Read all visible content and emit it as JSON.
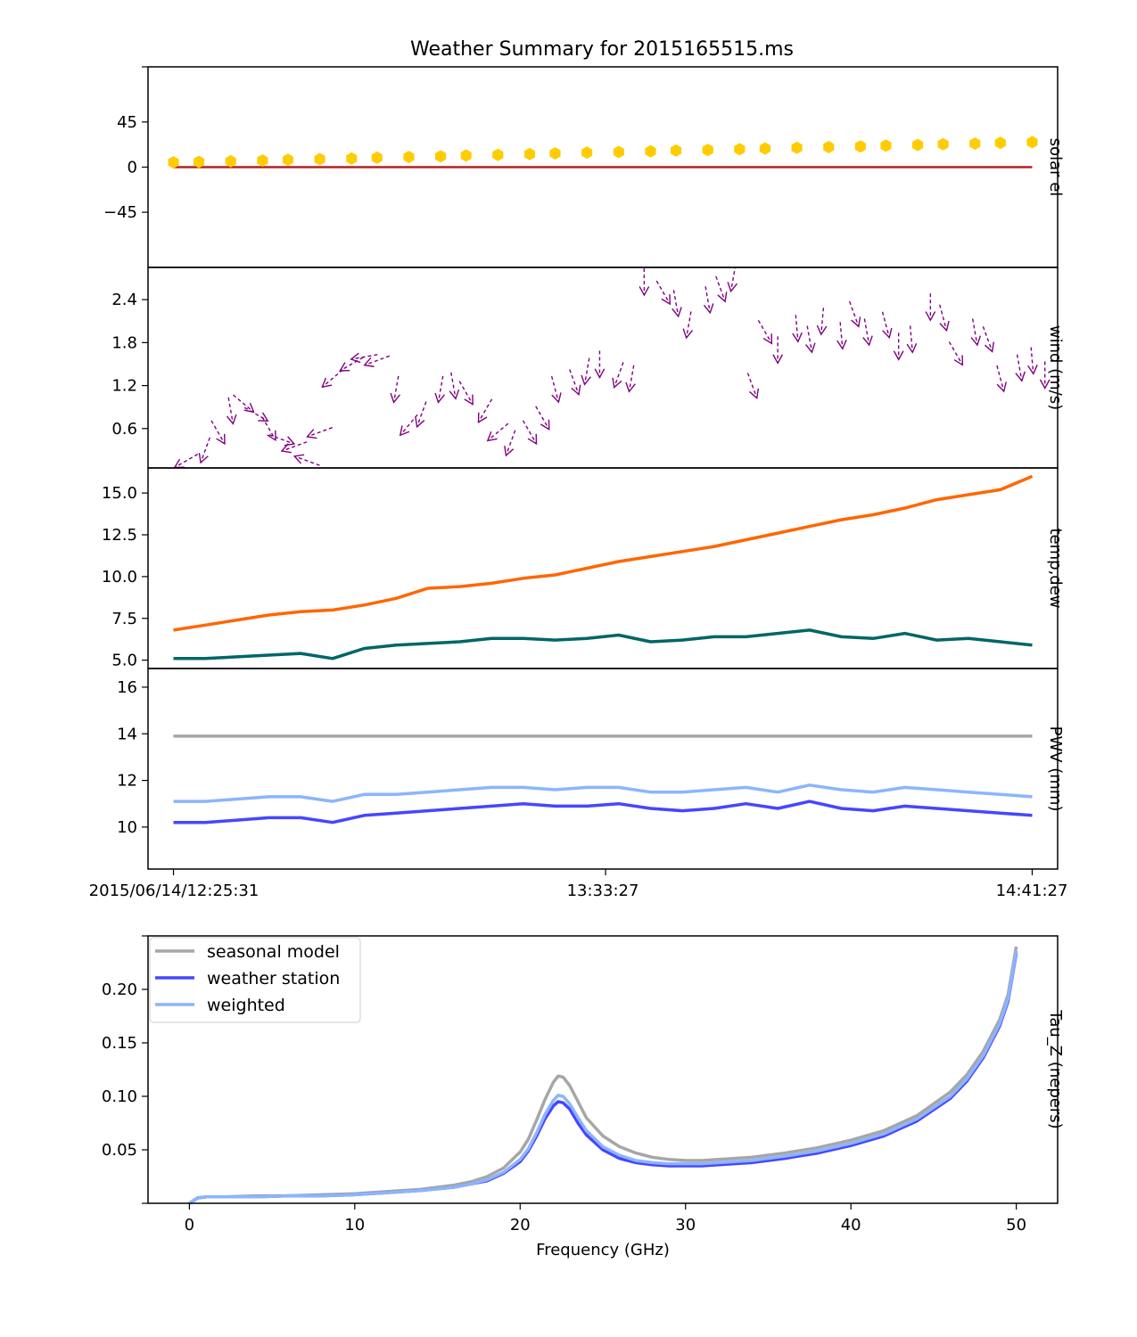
{
  "title": "Weather Summary for 2015165515.ms",
  "colors": {
    "solar_el_points": "#ffcc00",
    "horizon_line": "#b22222",
    "wind_arrows": "#800080",
    "temperature": "#ff6600",
    "dewpoint": "#006666",
    "pwv_seasonal": "#a6a6a6",
    "pwv_weather_station": "#4646ff",
    "pwv_weighted": "#8cb4ff"
  },
  "time_axis": {
    "tick_labels": [
      "2015/06/14/12:25:31",
      "13:33:27",
      "14:41:27"
    ]
  },
  "chart_data": [
    {
      "type": "scatter",
      "ylabel": "solar el",
      "ylim": [
        -100,
        100
      ],
      "yticks": [
        45,
        0,
        -45
      ],
      "ytick_labels": [
        "45",
        "0",
        "−45"
      ],
      "xlim_minutes": [
        -4,
        139
      ],
      "x_minutes": [
        0,
        4,
        9,
        14,
        18,
        23,
        28,
        32,
        37,
        42,
        46,
        51,
        56,
        60,
        65,
        70,
        75,
        79,
        84,
        89,
        93,
        98,
        103,
        108,
        112,
        117,
        121,
        126,
        130,
        135
      ],
      "series": [
        {
          "values": [
            4.8,
            5.2,
            5.9,
            6.6,
            7.3,
            8.0,
            8.7,
            9.4,
            10.1,
            10.8,
            11.6,
            12.3,
            13.0,
            13.7,
            14.4,
            15.1,
            15.8,
            16.5,
            17.2,
            17.9,
            18.6,
            19.3,
            20.0,
            20.7,
            21.4,
            22.1,
            22.8,
            23.5,
            24.2,
            24.9
          ]
        }
      ],
      "horizon": {
        "y": 0,
        "x_range_minutes": [
          0,
          135
        ]
      }
    },
    {
      "type": "scatter",
      "ylabel": "wind (m/s)",
      "ylim": [
        0.05,
        2.85
      ],
      "yticks": [
        2.4,
        1.8,
        1.2,
        0.6
      ],
      "ytick_labels": [
        "2.4",
        "1.8",
        "1.2",
        "0.6"
      ],
      "xlim_minutes": [
        -4,
        139
      ],
      "x_minutes": [
        2,
        5,
        7,
        9,
        11,
        13,
        15,
        17,
        19,
        21,
        23,
        25,
        28,
        30,
        32,
        35,
        37,
        39,
        42,
        44,
        46,
        49,
        51,
        53,
        56,
        58,
        60,
        63,
        65,
        67,
        70,
        72,
        74,
        77,
        79,
        81,
        84,
        86,
        88,
        91,
        93,
        95,
        98,
        100,
        102,
        105,
        107,
        109,
        112,
        114,
        116,
        119,
        121,
        123,
        126,
        128,
        130,
        133,
        135,
        137
      ],
      "series": [
        {
          "name": "speed",
          "values": [
            0.15,
            0.3,
            0.55,
            0.85,
            0.95,
            0.8,
            0.6,
            0.45,
            0.35,
            0.15,
            0.55,
            1.3,
            1.5,
            1.6,
            1.55,
            1.15,
            0.65,
            0.8,
            1.15,
            1.2,
            1.1,
            0.85,
            0.55,
            0.4,
            0.55,
            0.75,
            1.15,
            1.25,
            1.4,
            1.5,
            1.35,
            1.3,
            2.65,
            2.5,
            2.35,
            2.05,
            2.4,
            2.55,
            2.7,
            1.2,
            1.95,
            1.7,
            2.0,
            1.85,
            2.1,
            1.9,
            2.2,
            1.95,
            2.05,
            1.75,
            1.85,
            2.3,
            2.15,
            1.65,
            1.95,
            1.85,
            1.3,
            1.45,
            1.55,
            1.35
          ]
        },
        {
          "name": "direction_deg",
          "values": [
            210,
            250,
            300,
            280,
            320,
            330,
            300,
            340,
            200,
            160,
            200,
            220,
            210,
            190,
            200,
            260,
            230,
            250,
            260,
            280,
            300,
            240,
            220,
            250,
            300,
            300,
            285,
            290,
            260,
            270,
            250,
            260,
            270,
            300,
            280,
            260,
            280,
            290,
            260,
            290,
            300,
            270,
            275,
            280,
            265,
            275,
            290,
            280,
            285,
            270,
            275,
            270,
            285,
            300,
            280,
            290,
            285,
            280,
            275,
            270
          ]
        }
      ]
    },
    {
      "type": "line",
      "ylabel": "temp,dew",
      "ylim": [
        4.5,
        16.5
      ],
      "yticks": [
        15.0,
        12.5,
        10.0,
        7.5,
        5.0
      ],
      "ytick_labels": [
        "15.0",
        "12.5",
        "10.0",
        "7.5",
        "5.0"
      ],
      "xlim_minutes": [
        -4,
        139
      ],
      "x_minutes": [
        0,
        5,
        10,
        15,
        20,
        25,
        30,
        35,
        40,
        45,
        50,
        55,
        60,
        65,
        70,
        75,
        80,
        85,
        90,
        95,
        100,
        105,
        110,
        115,
        120,
        125,
        130,
        135
      ],
      "series": [
        {
          "name": "temperature",
          "values": [
            6.8,
            7.1,
            7.4,
            7.7,
            7.9,
            8.0,
            8.3,
            8.7,
            9.3,
            9.4,
            9.6,
            9.9,
            10.1,
            10.5,
            10.9,
            11.2,
            11.5,
            11.8,
            12.2,
            12.6,
            13.0,
            13.4,
            13.7,
            14.1,
            14.6,
            14.9,
            15.2,
            16.0
          ]
        },
        {
          "name": "dewpoint",
          "values": [
            5.1,
            5.1,
            5.2,
            5.3,
            5.4,
            5.1,
            5.7,
            5.9,
            6.0,
            6.1,
            6.3,
            6.3,
            6.2,
            6.3,
            6.5,
            6.1,
            6.2,
            6.4,
            6.4,
            6.6,
            6.8,
            6.4,
            6.3,
            6.6,
            6.2,
            6.3,
            6.1,
            5.9
          ]
        }
      ]
    },
    {
      "type": "line",
      "ylabel": "PWV (mm)",
      "ylim": [
        8.2,
        16.8
      ],
      "yticks": [
        16,
        14,
        12,
        10
      ],
      "ytick_labels": [
        "16",
        "14",
        "12",
        "10"
      ],
      "xlim_minutes": [
        -4,
        139
      ],
      "x_minutes": [
        0,
        5,
        10,
        15,
        20,
        25,
        30,
        35,
        40,
        45,
        50,
        55,
        60,
        65,
        70,
        75,
        80,
        85,
        90,
        95,
        100,
        105,
        110,
        115,
        120,
        125,
        130,
        135
      ],
      "series": [
        {
          "name": "seasonal model",
          "values": [
            13.9,
            13.9,
            13.9,
            13.9,
            13.9,
            13.9,
            13.9,
            13.9,
            13.9,
            13.9,
            13.9,
            13.9,
            13.9,
            13.9,
            13.9,
            13.9,
            13.9,
            13.9,
            13.9,
            13.9,
            13.9,
            13.9,
            13.9,
            13.9,
            13.9,
            13.9,
            13.9,
            13.9
          ]
        },
        {
          "name": "weather station",
          "values": [
            10.2,
            10.2,
            10.3,
            10.4,
            10.4,
            10.2,
            10.5,
            10.6,
            10.7,
            10.8,
            10.9,
            11.0,
            10.9,
            10.9,
            11.0,
            10.8,
            10.7,
            10.8,
            11.0,
            10.8,
            11.1,
            10.8,
            10.7,
            10.9,
            10.8,
            10.7,
            10.6,
            10.5
          ]
        },
        {
          "name": "weighted",
          "values": [
            11.1,
            11.1,
            11.2,
            11.3,
            11.3,
            11.1,
            11.4,
            11.4,
            11.5,
            11.6,
            11.7,
            11.7,
            11.6,
            11.7,
            11.7,
            11.5,
            11.5,
            11.6,
            11.7,
            11.5,
            11.8,
            11.6,
            11.5,
            11.7,
            11.6,
            11.5,
            11.4,
            11.3
          ]
        }
      ]
    },
    {
      "type": "line",
      "ylabel": "Tau_Z (nepers)",
      "xlabel": "Frequency (GHz)",
      "xlim": [
        -2.5,
        52.5
      ],
      "ylim": [
        0.0,
        0.25
      ],
      "xticks": [
        0,
        10,
        20,
        30,
        40,
        50
      ],
      "xtick_labels": [
        "0",
        "10",
        "20",
        "30",
        "40",
        "50"
      ],
      "yticks": [
        0.2,
        0.15,
        0.1,
        0.05
      ],
      "ytick_labels": [
        "0.20",
        "0.15",
        "0.10",
        "0.05"
      ],
      "legend_position": "upper-left",
      "x": [
        0,
        0.5,
        1,
        2,
        4,
        6,
        8,
        10,
        12,
        14,
        16,
        17,
        18,
        19,
        20,
        20.5,
        21,
        21.5,
        22,
        22.3,
        22.6,
        23,
        23.5,
        24,
        25,
        26,
        27,
        28,
        29,
        30,
        31,
        32,
        34,
        36,
        38,
        40,
        42,
        44,
        46,
        47,
        48,
        49,
        49.5,
        50
      ],
      "series": [
        {
          "name": "seasonal model",
          "values": [
            0.0,
            0.005,
            0.006,
            0.006,
            0.007,
            0.007,
            0.008,
            0.009,
            0.011,
            0.013,
            0.017,
            0.02,
            0.025,
            0.033,
            0.048,
            0.06,
            0.078,
            0.097,
            0.113,
            0.119,
            0.118,
            0.11,
            0.095,
            0.08,
            0.063,
            0.053,
            0.047,
            0.043,
            0.041,
            0.04,
            0.04,
            0.041,
            0.043,
            0.047,
            0.052,
            0.059,
            0.068,
            0.082,
            0.104,
            0.12,
            0.142,
            0.172,
            0.195,
            0.24
          ]
        },
        {
          "name": "weather station",
          "values": [
            0.0,
            0.005,
            0.006,
            0.006,
            0.006,
            0.007,
            0.007,
            0.008,
            0.01,
            0.012,
            0.015,
            0.018,
            0.021,
            0.028,
            0.039,
            0.049,
            0.063,
            0.079,
            0.091,
            0.095,
            0.094,
            0.088,
            0.075,
            0.064,
            0.05,
            0.042,
            0.038,
            0.036,
            0.035,
            0.035,
            0.035,
            0.036,
            0.038,
            0.042,
            0.047,
            0.054,
            0.063,
            0.077,
            0.098,
            0.114,
            0.136,
            0.166,
            0.189,
            0.234
          ]
        },
        {
          "name": "weighted",
          "values": [
            0.0,
            0.005,
            0.006,
            0.006,
            0.006,
            0.007,
            0.007,
            0.008,
            0.01,
            0.012,
            0.015,
            0.018,
            0.022,
            0.029,
            0.041,
            0.051,
            0.066,
            0.083,
            0.096,
            0.101,
            0.1,
            0.093,
            0.08,
            0.068,
            0.053,
            0.045,
            0.04,
            0.038,
            0.037,
            0.037,
            0.037,
            0.038,
            0.04,
            0.044,
            0.049,
            0.056,
            0.065,
            0.079,
            0.1,
            0.116,
            0.138,
            0.168,
            0.191,
            0.236
          ]
        }
      ]
    }
  ]
}
